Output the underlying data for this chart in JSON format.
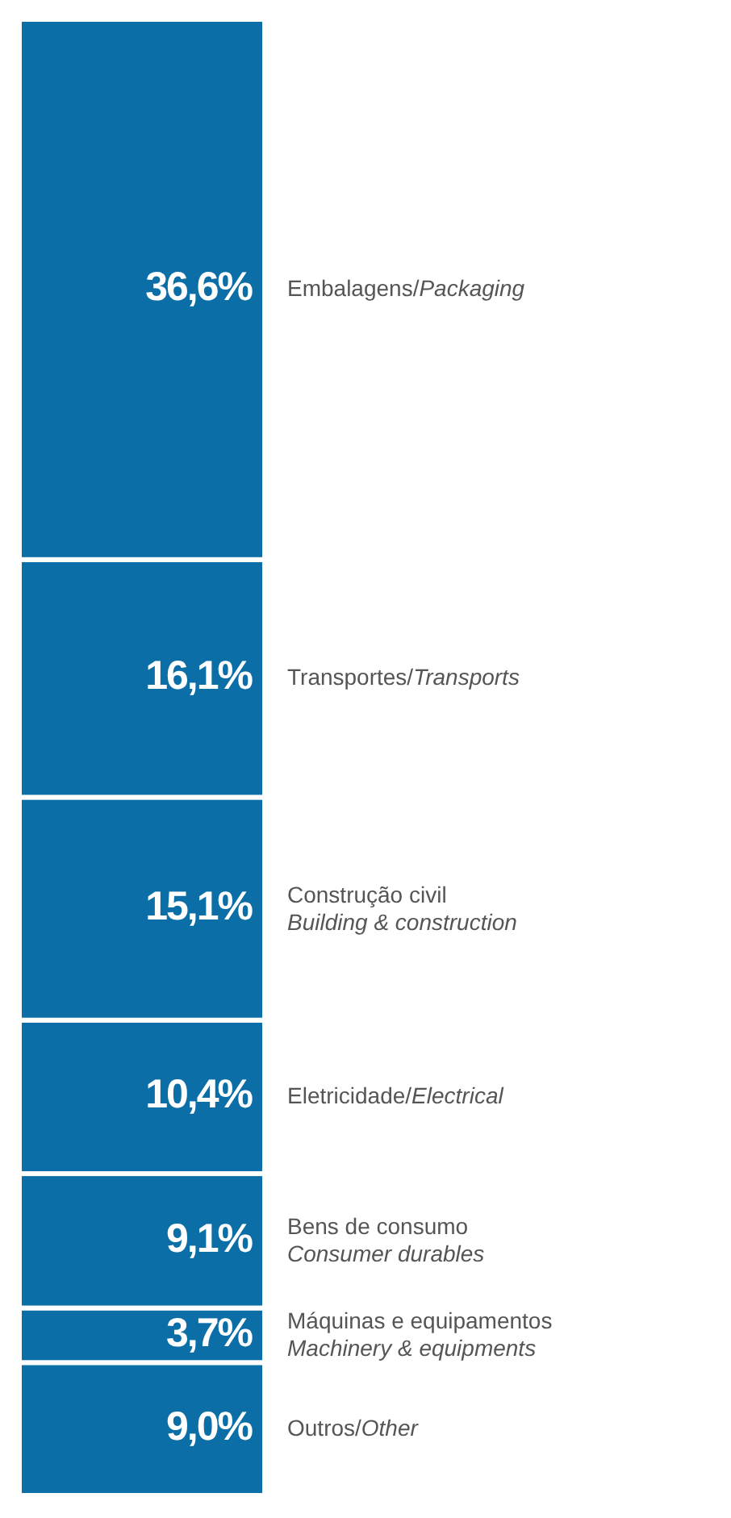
{
  "chart_data": {
    "type": "bar",
    "stacked": true,
    "categories": [
      null
    ],
    "legend": false,
    "series": [
      {
        "name": "Outros/Other",
        "color": "#0b6ea6",
        "values": [
          9.0
        ],
        "value_labels": [
          "9,0%"
        ]
      },
      {
        "name": "Máquinas e equipamentos\nMachinery & equipments",
        "color": "#0b6ea6",
        "values": [
          3.7
        ],
        "value_labels": [
          "3,7%"
        ]
      },
      {
        "name": "Bens de consumo\nConsumer durables",
        "color": "#0b6ea6",
        "values": [
          9.1
        ],
        "value_labels": [
          "9,1%"
        ]
      },
      {
        "name": "Eletricidade/Electrical",
        "color": "#0b6ea6",
        "values": [
          10.4
        ],
        "value_labels": [
          "10,4%"
        ]
      },
      {
        "name": "Construção civil\nBuilding & construction",
        "color": "#0b6ea6",
        "values": [
          15.1
        ],
        "value_labels": [
          "15,1%"
        ]
      },
      {
        "name": "Transportes/Transports",
        "color": "#0b6ea6",
        "values": [
          16.1
        ],
        "value_labels": [
          "16,1%"
        ]
      },
      {
        "name": "Embalagens/Packaging",
        "color": "#0b6ea6",
        "values": [
          36.6
        ],
        "value_labels": [
          "36,6%"
        ]
      }
    ]
  }
}
